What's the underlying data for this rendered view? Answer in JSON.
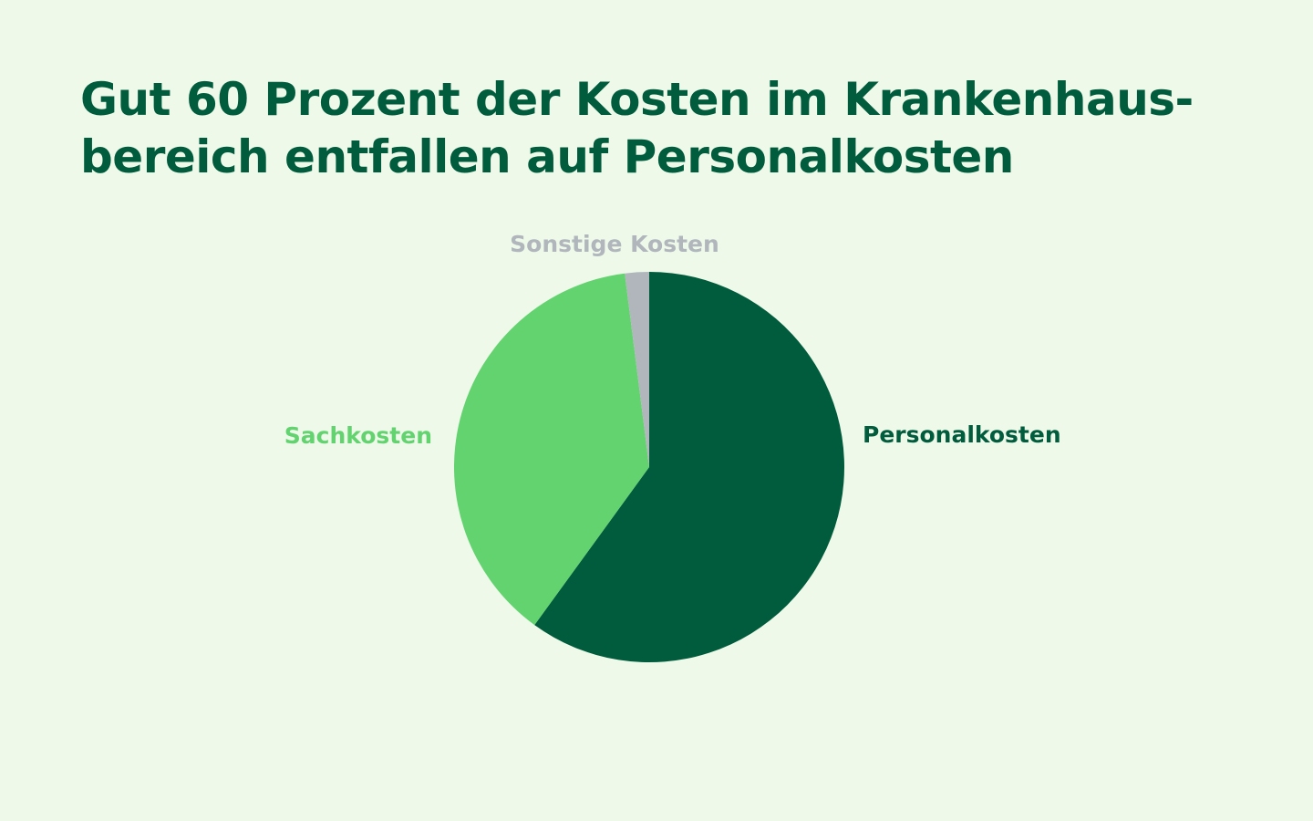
{
  "title": {
    "line1": "Gut 60 Prozent der Kosten im Krankenhaus-",
    "line2": "bereich entfallen auf Personalkosten"
  },
  "chart_data": {
    "type": "pie",
    "title": "Gut 60 Prozent der Kosten im Krankenhausbereich entfallen auf Personalkosten",
    "slices": [
      {
        "label": "Personalkosten",
        "value": 60,
        "color": "#005c3c"
      },
      {
        "label": "Sachkosten",
        "value": 38,
        "color": "#62d36f"
      },
      {
        "label": "Sonstige Kosten",
        "value": 2,
        "color": "#b0b6bb"
      }
    ],
    "start_angle": "top",
    "direction": "clockwise",
    "legend": "none (direct labels)"
  }
}
